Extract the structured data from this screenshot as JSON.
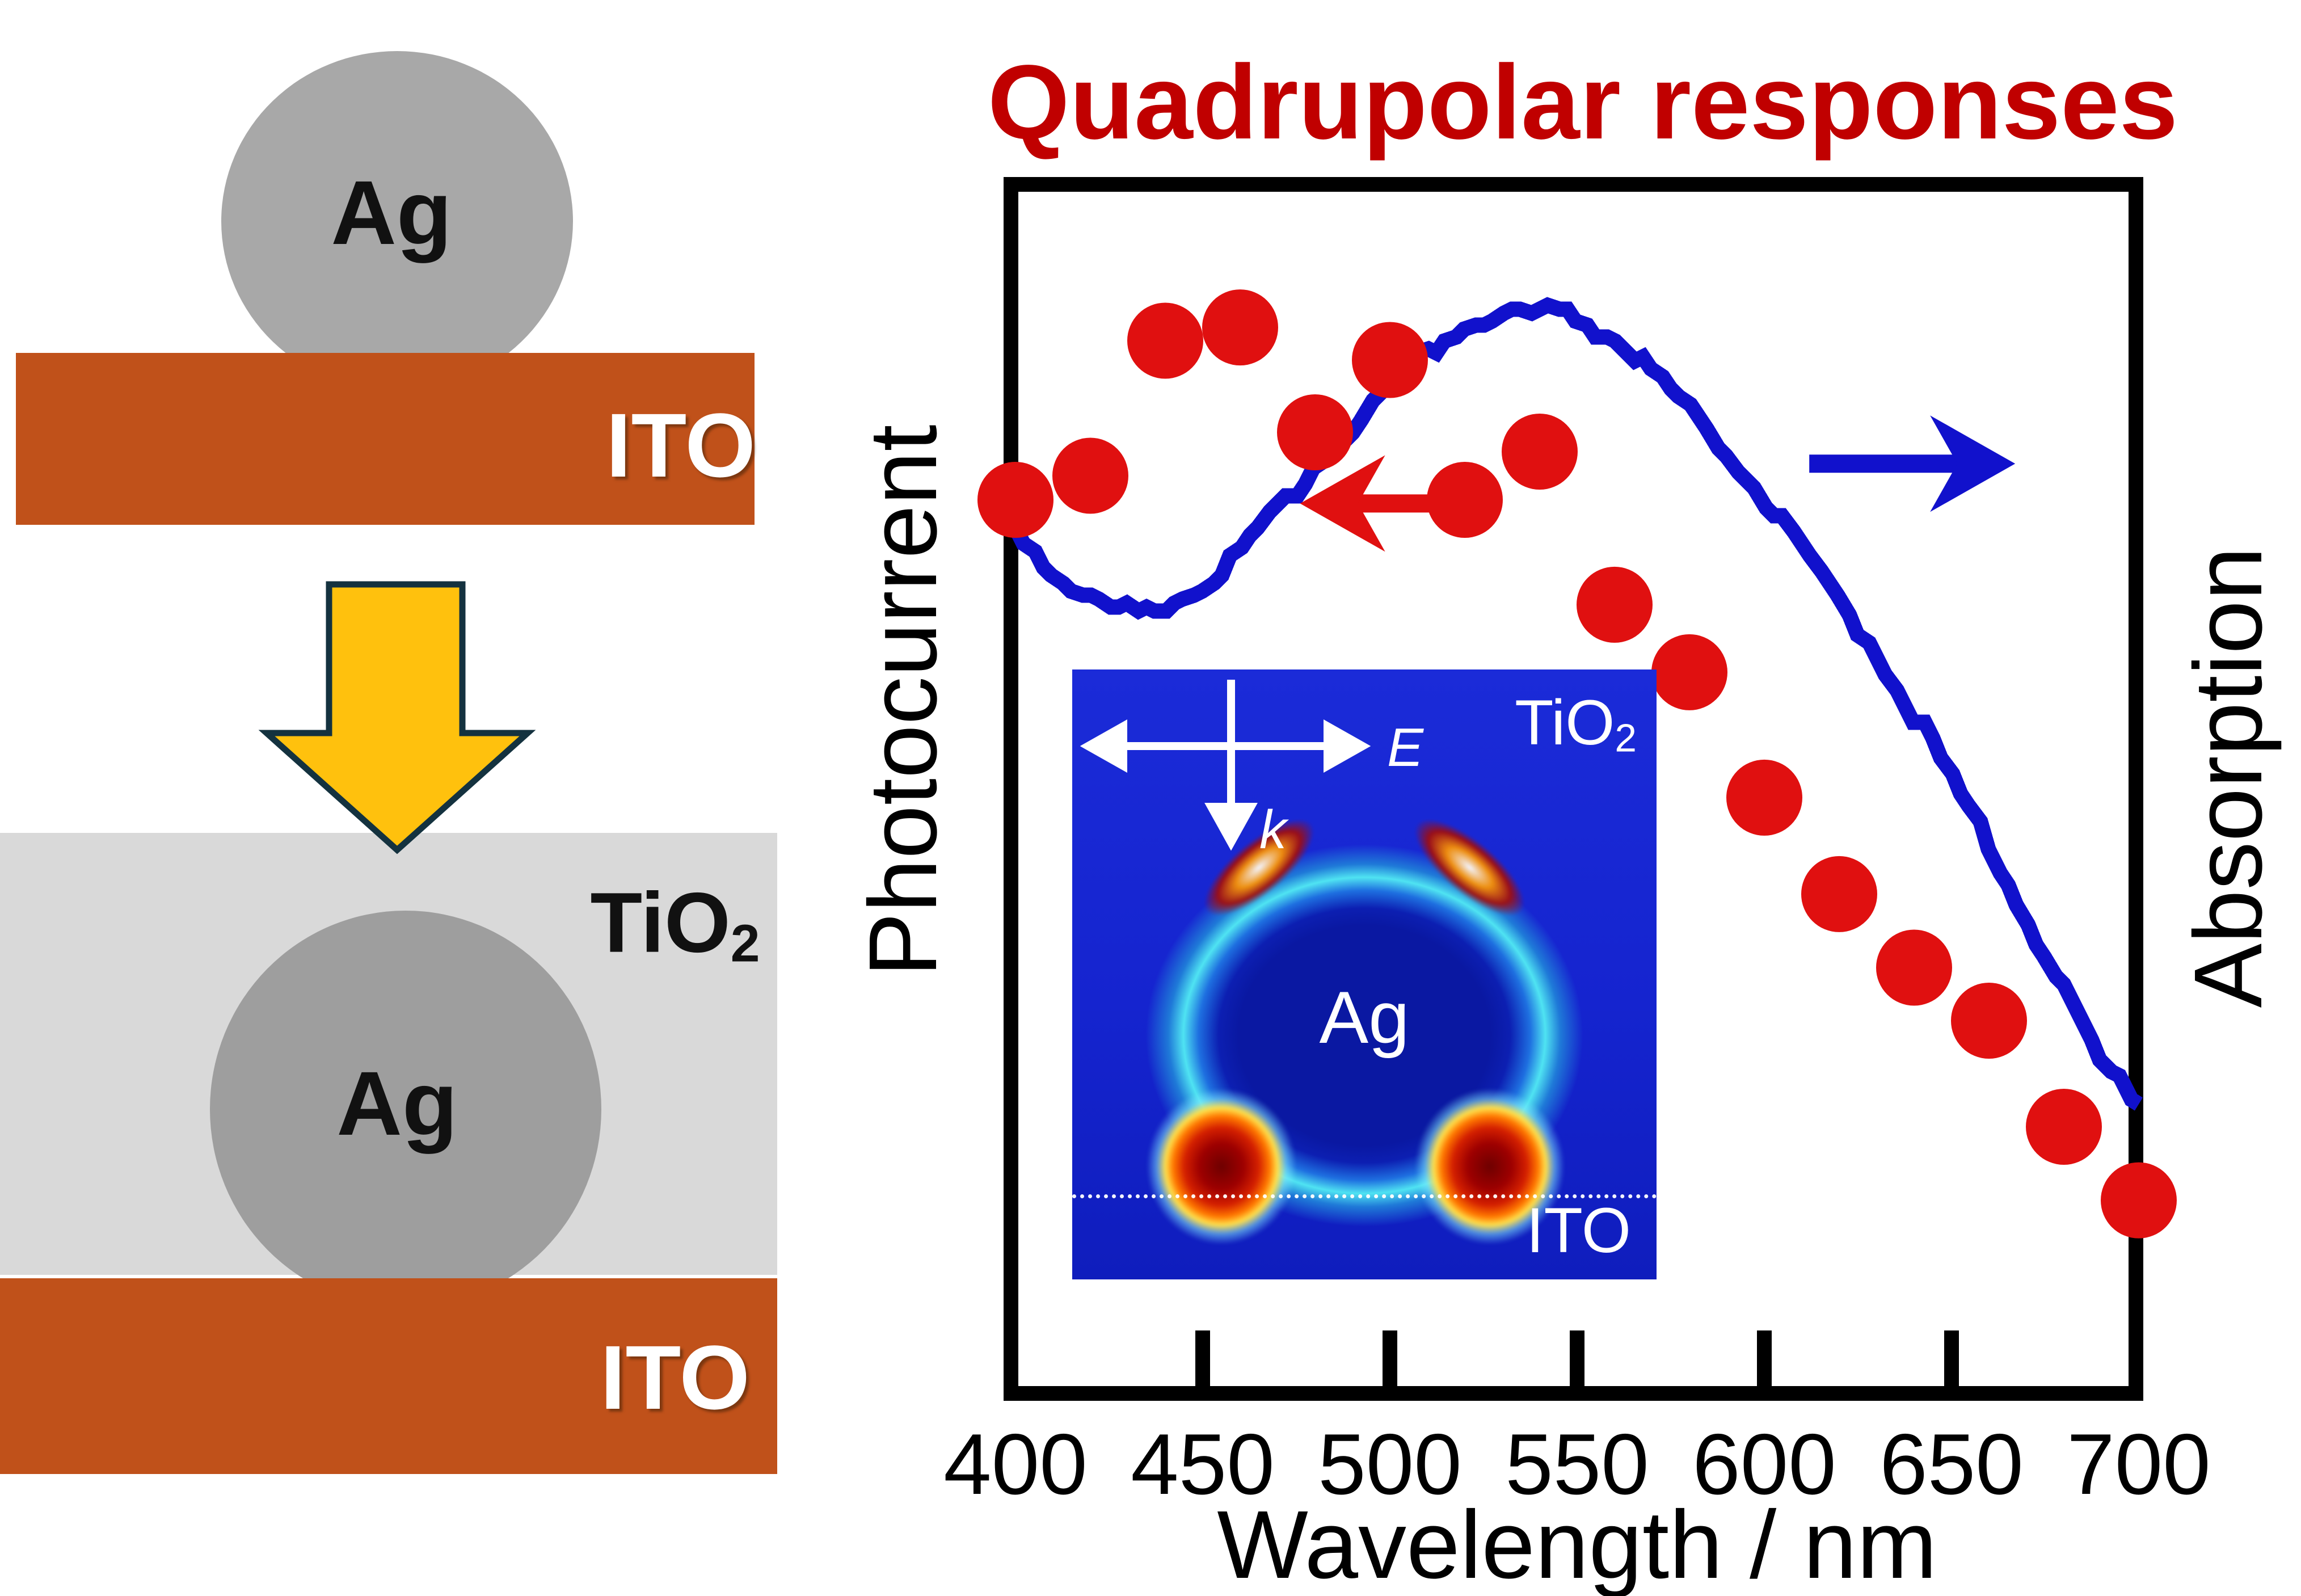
{
  "title": "Quadrupolar responses",
  "left_panel": {
    "before": {
      "particle_label": "Ag",
      "substrate_label": "ITO"
    },
    "after": {
      "matrix_label_main": "TiO",
      "matrix_label_sub": "2",
      "particle_label": "Ag",
      "substrate_label": "ITO"
    }
  },
  "inset": {
    "e_label": "E",
    "k_label": "k",
    "top_medium_main": "TiO",
    "top_medium_sub": "2",
    "particle_label": "Ag",
    "bottom_medium": "ITO"
  },
  "chart_data": {
    "type": "line+scatter",
    "title": "Quadrupolar responses",
    "xlabel": "Wavelength / nm",
    "ylabel_left": "Photocurrent",
    "ylabel_right": "Absorption",
    "x_range": [
      400,
      700
    ],
    "x_ticks": [
      400,
      450,
      500,
      550,
      600,
      650,
      700
    ],
    "grid": false,
    "series": [
      {
        "name": "Photocurrent",
        "type": "scatter",
        "color": "#E01010",
        "axis": "left",
        "x": [
          400,
          420,
          440,
          460,
          480,
          500,
          520,
          540,
          560,
          580,
          600,
          620,
          640,
          660,
          680,
          700
        ],
        "y": [
          0.736,
          0.756,
          0.868,
          0.879,
          0.792,
          0.852,
          0.736,
          0.776,
          0.649,
          0.593,
          0.489,
          0.409,
          0.348,
          0.304,
          0.216,
          0.155
        ]
      },
      {
        "name": "Absorption",
        "type": "line",
        "color": "#1111CC",
        "axis": "right",
        "x": [
          400,
          410,
          420,
          430,
          440,
          450,
          460,
          470,
          480,
          490,
          500,
          510,
          520,
          530,
          540,
          550,
          560,
          570,
          580,
          590,
          600,
          610,
          620,
          630,
          640,
          650,
          660,
          670,
          680,
          690,
          700
        ],
        "y": [
          0.711,
          0.671,
          0.649,
          0.641,
          0.645,
          0.661,
          0.689,
          0.725,
          0.76,
          0.795,
          0.828,
          0.856,
          0.875,
          0.886,
          0.889,
          0.883,
          0.865,
          0.838,
          0.806,
          0.769,
          0.732,
          0.692,
          0.649,
          0.605,
          0.555,
          0.501,
          0.445,
          0.386,
          0.325,
          0.266,
          0.235
        ]
      }
    ],
    "annotations": [
      {
        "type": "arrow",
        "points_to": "left-axis",
        "color": "#E01010",
        "x_from": 520,
        "x_to": 476,
        "v": 0.733
      },
      {
        "type": "arrow",
        "points_to": "right-axis",
        "color": "#1111CC",
        "x_from": 612,
        "x_to": 667,
        "v": 0.766
      }
    ]
  },
  "colors": {
    "title": "#C00000",
    "dot": "#E01010",
    "curve": "#1111CC",
    "frame": "#000000",
    "ito": "#C0511A",
    "tio2": "#D9D9D9",
    "silver": "#A8A8A8",
    "silver_dark": "#9E9E9E",
    "process_arrow_fill": "#FFC10D",
    "process_arrow_stroke": "#14323F",
    "inset_background": "#1524CF"
  }
}
